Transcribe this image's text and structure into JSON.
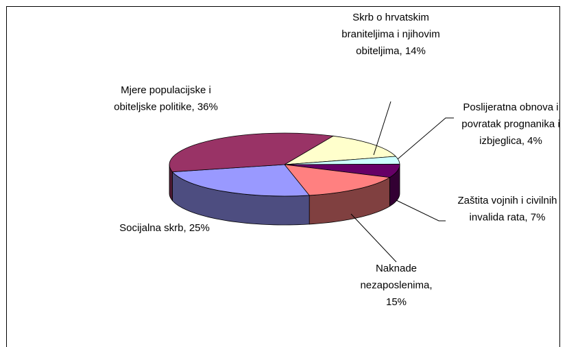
{
  "chart_data": {
    "type": "pie3d",
    "values": [
      14,
      4,
      7,
      15,
      25,
      36
    ],
    "value_labels": [
      "Skrb o hrvatskim braniteljima i njihovim obiteljima, 14%",
      "Poslijeratna obnova i povratak prognanika i izbjeglica, 4%",
      "Zaštita vojnih i civilnih invalida rata, 7%",
      "Naknade nezaposlenima, 15%",
      "Socijalna skrb, 25%",
      "Mjere populacijske i obiteljske politike, 36%"
    ],
    "colors": [
      "#ffffcc",
      "#ccffff",
      "#660066",
      "#ff8080",
      "#9999ff",
      "#993366"
    ]
  }
}
